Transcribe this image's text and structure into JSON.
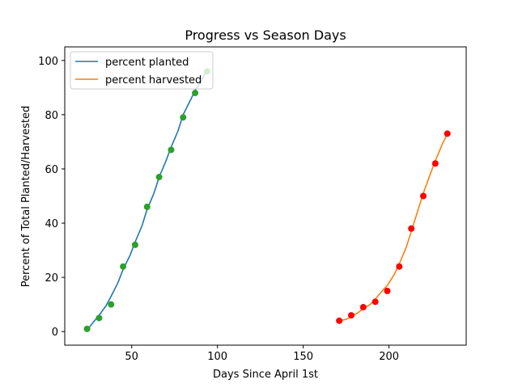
{
  "chart_data": {
    "type": "line",
    "title": "Progress vs Season Days",
    "xlabel": "Days Since April 1st",
    "ylabel": "Percent of Total Planted/Harvested",
    "xlim": [
      11,
      245
    ],
    "ylim": [
      -5,
      105
    ],
    "xticks": [
      50,
      100,
      150,
      200
    ],
    "yticks": [
      0,
      20,
      40,
      60,
      80,
      100
    ],
    "grid": false,
    "legend_position": "top-left",
    "series": [
      {
        "name": "percent planted",
        "kind": "fit-line",
        "color": "#1f77b4",
        "x": [
          24,
          27,
          31,
          35,
          38,
          42,
          45,
          49,
          52,
          56,
          59,
          63,
          66,
          70,
          73,
          77,
          80,
          84,
          87,
          91,
          94
        ],
        "y": [
          0.5,
          3,
          6,
          9.5,
          13,
          18,
          23,
          28,
          33,
          39,
          45,
          51,
          57,
          63,
          68,
          74,
          80,
          85,
          89,
          93,
          97
        ]
      },
      {
        "name": "percent harvested",
        "kind": "fit-line",
        "color": "#ff7f0e",
        "x": [
          171,
          175,
          178,
          182,
          185,
          189,
          192,
          196,
          199,
          203,
          206,
          210,
          213,
          217,
          220,
          224,
          227,
          231,
          234
        ],
        "y": [
          4,
          4.5,
          5.5,
          7,
          8.5,
          10,
          12,
          15,
          17,
          21,
          25,
          31,
          37,
          45,
          51,
          58,
          63,
          69,
          73
        ]
      },
      {
        "kind": "points",
        "color": "#2ca02c",
        "x": [
          24,
          31,
          38,
          45,
          52,
          59,
          66,
          73,
          80,
          87,
          94
        ],
        "y": [
          1,
          5,
          10,
          24,
          32,
          46,
          57,
          67,
          79,
          88,
          96
        ]
      },
      {
        "kind": "points",
        "color": "#ff0000",
        "x": [
          171,
          178,
          185,
          192,
          199,
          206,
          213,
          220,
          227,
          234
        ],
        "y": [
          4,
          6,
          9,
          11,
          15,
          24,
          38,
          50,
          62,
          73
        ]
      }
    ]
  }
}
